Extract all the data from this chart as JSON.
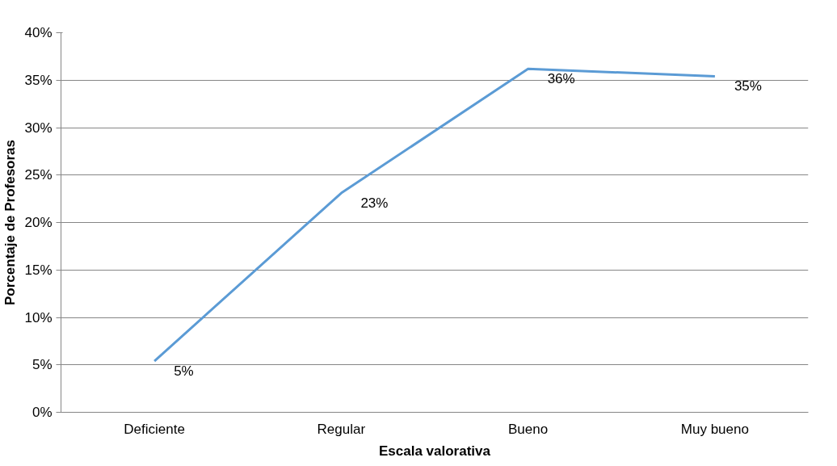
{
  "chart_data": {
    "type": "line",
    "xlabel": "Escala valorativa",
    "ylabel": "Porcentaje de Profesoras",
    "categories": [
      "Deficiente",
      "Regular",
      "Bueno",
      "Muy bueno"
    ],
    "series": [
      {
        "color": "#5b9bd5",
        "values": [
          5.4,
          23.1,
          36.2,
          35.4
        ],
        "value_labels": [
          "5%",
          "23%",
          "36%",
          "35%"
        ]
      }
    ],
    "ylim": [
      0,
      40
    ],
    "yticks": [
      {
        "value": 0,
        "label": "0%"
      },
      {
        "value": 5,
        "label": "5%"
      },
      {
        "value": 10,
        "label": "10%"
      },
      {
        "value": 15,
        "label": "15%"
      },
      {
        "value": 20,
        "label": "20%"
      },
      {
        "value": 25,
        "label": "25%"
      },
      {
        "value": 30,
        "label": "30%"
      },
      {
        "value": 35,
        "label": "35%"
      },
      {
        "value": 40,
        "label": "40%"
      }
    ],
    "grid": "y",
    "marker": "none",
    "line_style": "solid"
  }
}
